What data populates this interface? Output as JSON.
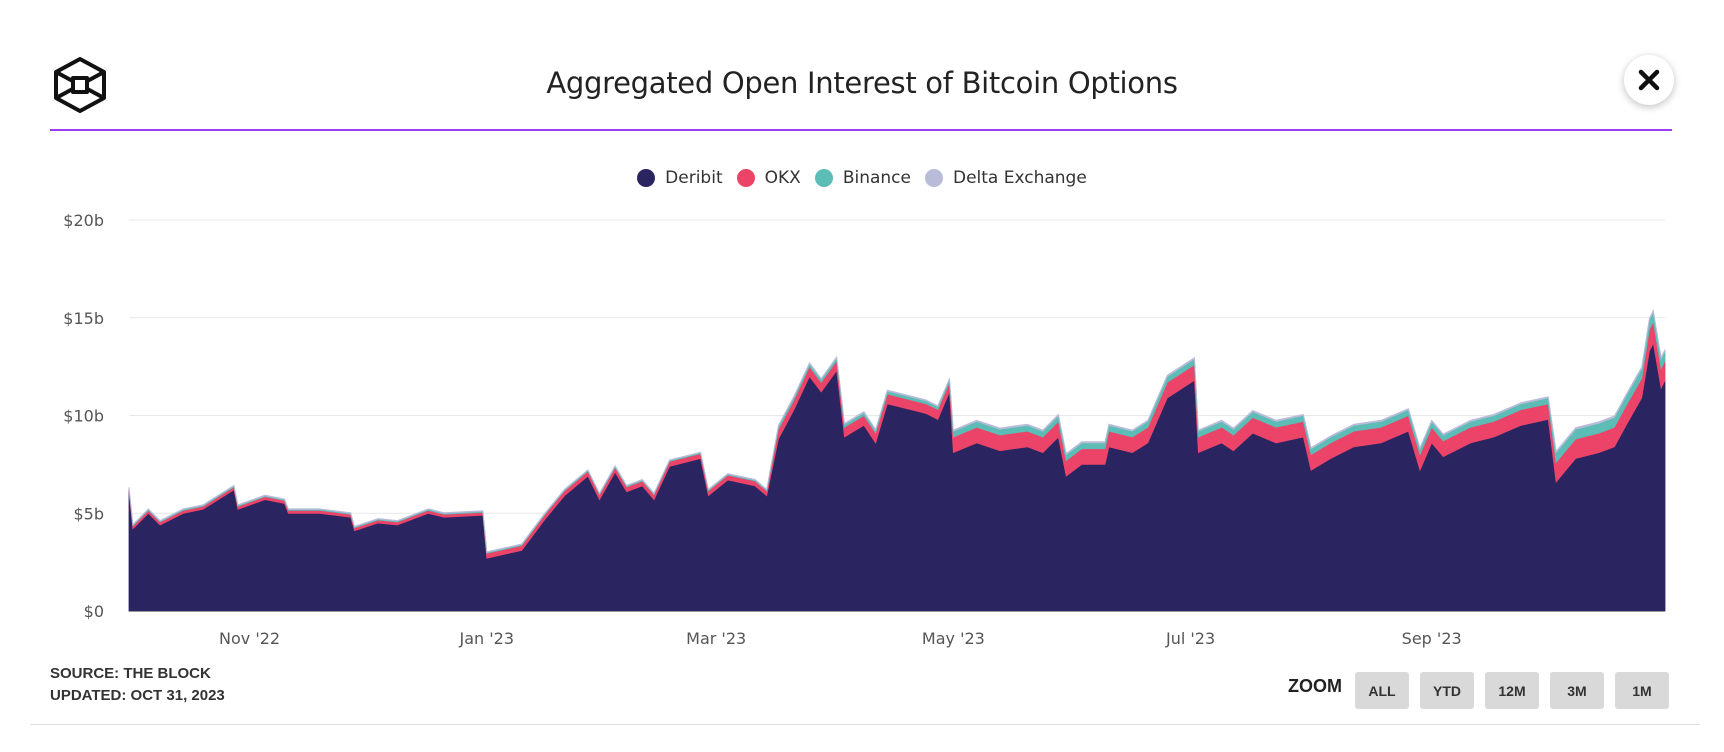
{
  "header": {
    "title": "Aggregated Open Interest of Bitcoin Options",
    "logo_icon": "cube-logo-icon",
    "close_icon": "close-icon"
  },
  "footer": {
    "source": "SOURCE: THE BLOCK",
    "updated": "UPDATED: OCT 31, 2023"
  },
  "zoom": {
    "label": "ZOOM",
    "buttons": [
      "ALL",
      "YTD",
      "12M",
      "3M",
      "1M"
    ]
  },
  "colors": {
    "Deribit": "#2a2460",
    "OKX": "#ec4468",
    "Binance": "#5cbcb6",
    "Delta Exchange": "#b9bcd9",
    "accent": "#9b3df0"
  },
  "chart_data": {
    "type": "area",
    "stacked": true,
    "title": "Aggregated Open Interest of Bitcoin Options",
    "xlabel": "",
    "ylabel": "",
    "ylim": [
      0,
      20
    ],
    "xlim": [
      "2022-10-01",
      "2023-10-31"
    ],
    "yticks": [
      {
        "v": 0,
        "label": "$0"
      },
      {
        "v": 5,
        "label": "$5b"
      },
      {
        "v": 10,
        "label": "$10b"
      },
      {
        "v": 15,
        "label": "$15b"
      },
      {
        "v": 20,
        "label": "$20b"
      }
    ],
    "xticks": [
      {
        "d": "2022-11-01",
        "label": "Nov '22"
      },
      {
        "d": "2023-01-01",
        "label": "Jan '23"
      },
      {
        "d": "2023-03-01",
        "label": "Mar '23"
      },
      {
        "d": "2023-05-01",
        "label": "May '23"
      },
      {
        "d": "2023-07-01",
        "label": "Jul '23"
      },
      {
        "d": "2023-09-01",
        "label": "Sep '23"
      }
    ],
    "grid": true,
    "legend_position": "top-center",
    "unit": "USD billions",
    "x": [
      "2022-10-01",
      "2022-10-02",
      "2022-10-06",
      "2022-10-09",
      "2022-10-15",
      "2022-10-20",
      "2022-10-28",
      "2022-10-29",
      "2022-11-05",
      "2022-11-10",
      "2022-11-11",
      "2022-11-19",
      "2022-11-27",
      "2022-11-28",
      "2022-12-04",
      "2022-12-09",
      "2022-12-17",
      "2022-12-21",
      "2022-12-31",
      "2023-01-01",
      "2023-01-10",
      "2023-01-16",
      "2023-01-21",
      "2023-01-27",
      "2023-01-30",
      "2023-02-03",
      "2023-02-06",
      "2023-02-10",
      "2023-02-13",
      "2023-02-17",
      "2023-02-25",
      "2023-02-27",
      "2023-03-04",
      "2023-03-11",
      "2023-03-14",
      "2023-03-17",
      "2023-03-21",
      "2023-03-25",
      "2023-03-28",
      "2023-04-01",
      "2023-04-03",
      "2023-04-08",
      "2023-04-11",
      "2023-04-14",
      "2023-04-20",
      "2023-04-24",
      "2023-04-27",
      "2023-04-30",
      "2023-05-01",
      "2023-05-07",
      "2023-05-13",
      "2023-05-20",
      "2023-05-24",
      "2023-05-28",
      "2023-05-30",
      "2023-06-03",
      "2023-06-09",
      "2023-06-10",
      "2023-06-16",
      "2023-06-20",
      "2023-06-25",
      "2023-07-02",
      "2023-07-03",
      "2023-07-09",
      "2023-07-12",
      "2023-07-17",
      "2023-07-23",
      "2023-07-30",
      "2023-08-01",
      "2023-08-06",
      "2023-08-12",
      "2023-08-19",
      "2023-08-26",
      "2023-08-29",
      "2023-09-01",
      "2023-09-04",
      "2023-09-11",
      "2023-09-17",
      "2023-09-24",
      "2023-10-01",
      "2023-10-03",
      "2023-10-08",
      "2023-10-14",
      "2023-10-18",
      "2023-10-21",
      "2023-10-25",
      "2023-10-27",
      "2023-10-28",
      "2023-10-30",
      "2023-10-31"
    ],
    "series": [
      {
        "name": "Deribit",
        "values": [
          6.1,
          4.2,
          5.0,
          4.4,
          5.0,
          5.2,
          6.2,
          5.2,
          5.7,
          5.5,
          5.0,
          5.0,
          4.8,
          4.1,
          4.5,
          4.4,
          5.0,
          4.8,
          4.9,
          2.7,
          3.1,
          4.7,
          5.9,
          6.9,
          5.7,
          7.1,
          6.1,
          6.4,
          5.7,
          7.4,
          7.8,
          5.9,
          6.7,
          6.4,
          5.9,
          8.8,
          10.3,
          12.0,
          11.2,
          12.3,
          8.9,
          9.5,
          8.6,
          10.6,
          10.3,
          10.1,
          9.8,
          11.2,
          8.1,
          8.6,
          8.2,
          8.4,
          8.1,
          8.9,
          6.9,
          7.5,
          7.5,
          8.4,
          8.1,
          8.6,
          10.9,
          11.8,
          8.1,
          8.6,
          8.2,
          9.1,
          8.6,
          8.9,
          7.2,
          7.8,
          8.4,
          8.6,
          9.2,
          7.2,
          8.6,
          7.9,
          8.6,
          8.9,
          9.5,
          9.8,
          6.6,
          7.8,
          8.1,
          8.4,
          9.5,
          10.9,
          13.3,
          13.7,
          11.4,
          11.8
        ]
      },
      {
        "name": "OKX",
        "values": [
          0.15,
          0.15,
          0.15,
          0.15,
          0.15,
          0.15,
          0.15,
          0.15,
          0.15,
          0.15,
          0.15,
          0.15,
          0.15,
          0.15,
          0.15,
          0.15,
          0.15,
          0.15,
          0.15,
          0.25,
          0.25,
          0.25,
          0.25,
          0.25,
          0.25,
          0.25,
          0.25,
          0.25,
          0.25,
          0.25,
          0.25,
          0.25,
          0.25,
          0.25,
          0.25,
          0.5,
          0.5,
          0.5,
          0.5,
          0.5,
          0.5,
          0.5,
          0.5,
          0.5,
          0.5,
          0.5,
          0.5,
          0.5,
          0.8,
          0.8,
          0.8,
          0.8,
          0.8,
          0.8,
          0.8,
          0.8,
          0.8,
          0.8,
          0.8,
          0.8,
          0.8,
          0.8,
          0.8,
          0.8,
          0.8,
          0.8,
          0.8,
          0.8,
          0.8,
          0.8,
          0.8,
          0.8,
          0.8,
          0.8,
          0.8,
          0.8,
          0.8,
          0.8,
          0.8,
          0.8,
          1.0,
          1.0,
          1.0,
          1.0,
          1.0,
          1.0,
          1.1,
          1.1,
          1.0,
          1.0
        ]
      },
      {
        "name": "Binance",
        "values": [
          0.05,
          0.05,
          0.05,
          0.05,
          0.05,
          0.05,
          0.05,
          0.05,
          0.05,
          0.05,
          0.05,
          0.05,
          0.05,
          0.05,
          0.05,
          0.05,
          0.05,
          0.05,
          0.05,
          0.05,
          0.05,
          0.05,
          0.05,
          0.05,
          0.05,
          0.05,
          0.05,
          0.05,
          0.05,
          0.05,
          0.05,
          0.05,
          0.05,
          0.05,
          0.05,
          0.15,
          0.15,
          0.15,
          0.15,
          0.15,
          0.15,
          0.15,
          0.15,
          0.15,
          0.15,
          0.15,
          0.15,
          0.15,
          0.3,
          0.3,
          0.3,
          0.3,
          0.3,
          0.3,
          0.3,
          0.3,
          0.3,
          0.3,
          0.3,
          0.3,
          0.3,
          0.3,
          0.3,
          0.3,
          0.3,
          0.3,
          0.3,
          0.3,
          0.3,
          0.3,
          0.3,
          0.3,
          0.3,
          0.3,
          0.3,
          0.3,
          0.3,
          0.3,
          0.3,
          0.3,
          0.5,
          0.5,
          0.5,
          0.5,
          0.5,
          0.5,
          0.5,
          0.5,
          0.5,
          0.5
        ]
      },
      {
        "name": "Delta Exchange",
        "values": [
          0.03,
          0.03,
          0.03,
          0.03,
          0.03,
          0.03,
          0.03,
          0.03,
          0.03,
          0.03,
          0.03,
          0.03,
          0.03,
          0.03,
          0.03,
          0.03,
          0.03,
          0.03,
          0.03,
          0.03,
          0.03,
          0.03,
          0.03,
          0.03,
          0.03,
          0.03,
          0.03,
          0.03,
          0.03,
          0.03,
          0.03,
          0.03,
          0.03,
          0.03,
          0.03,
          0.05,
          0.05,
          0.05,
          0.05,
          0.05,
          0.05,
          0.05,
          0.05,
          0.05,
          0.05,
          0.05,
          0.05,
          0.05,
          0.06,
          0.06,
          0.06,
          0.06,
          0.06,
          0.06,
          0.06,
          0.06,
          0.06,
          0.06,
          0.06,
          0.06,
          0.06,
          0.06,
          0.06,
          0.06,
          0.06,
          0.06,
          0.06,
          0.06,
          0.06,
          0.06,
          0.06,
          0.06,
          0.06,
          0.06,
          0.06,
          0.06,
          0.06,
          0.06,
          0.06,
          0.06,
          0.08,
          0.08,
          0.08,
          0.08,
          0.08,
          0.08,
          0.08,
          0.08,
          0.08,
          0.08
        ]
      }
    ]
  }
}
